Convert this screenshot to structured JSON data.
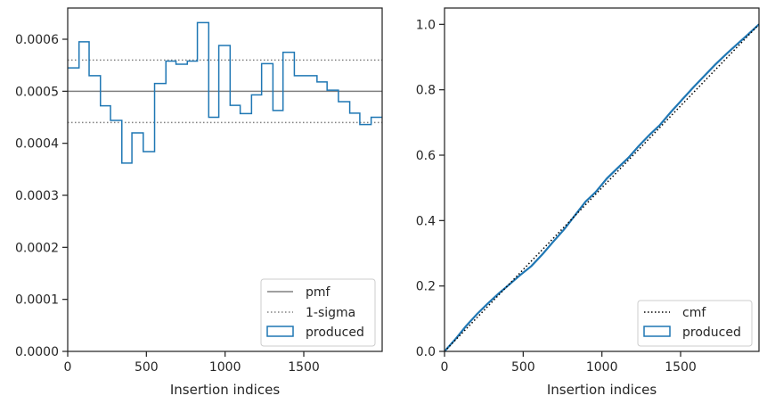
{
  "chart_data": [
    {
      "type": "line",
      "subtype": "step-histogram",
      "title": "",
      "xlabel": "Insertion indices",
      "ylabel": "",
      "xlim": [
        0,
        1998
      ],
      "ylim": [
        0,
        0.00066
      ],
      "xticks": [
        0,
        500,
        1000,
        1500
      ],
      "yticks": [
        0,
        0.0001,
        0.0002,
        0.0003,
        0.0004,
        0.0005,
        0.0006
      ],
      "xtick_labels": [
        "0",
        "500",
        "1000",
        "1500"
      ],
      "ytick_labels": [
        "0.0000",
        "0.0001",
        "0.0002",
        "0.0003",
        "0.0004",
        "0.0005",
        "0.0006"
      ],
      "grid": false,
      "legend_position": "lower-right",
      "bin_edges": [
        0,
        72,
        136,
        208,
        272,
        344,
        408,
        480,
        552,
        624,
        688,
        760,
        824,
        896,
        960,
        1032,
        1096,
        1168,
        1232,
        1304,
        1368,
        1440,
        1512,
        1584,
        1648,
        1720,
        1792,
        1856,
        1928,
        1998
      ],
      "series": [
        {
          "name": "pmf",
          "kind": "hline",
          "y": 0.0005,
          "color": "#808080",
          "style": "solid"
        },
        {
          "name": "1-sigma",
          "kind": "hlines",
          "y": [
            0.00044,
            0.00056
          ],
          "color": "#808080",
          "style": "dotted"
        },
        {
          "name": "produced",
          "kind": "step",
          "color": "#1f77b4",
          "values": [
            0.000545,
            0.000595,
            0.00053,
            0.000472,
            0.000444,
            0.000362,
            0.00042,
            0.000384,
            0.000515,
            0.000558,
            0.000552,
            0.000558,
            0.000632,
            0.00045,
            0.000588,
            0.000473,
            0.000457,
            0.000493,
            0.000553,
            0.000463,
            0.000575,
            0.00053,
            0.00053,
            0.000518,
            0.000502,
            0.00048,
            0.000458,
            0.000436,
            0.00045
          ]
        }
      ],
      "legend": [
        "pmf",
        "1-sigma",
        "produced"
      ]
    },
    {
      "type": "line",
      "title": "",
      "xlabel": "Insertion indices",
      "ylabel": "",
      "xlim": [
        0,
        1998
      ],
      "ylim": [
        0,
        1.05
      ],
      "xticks": [
        0,
        500,
        1000,
        1500
      ],
      "yticks": [
        0,
        0.2,
        0.4,
        0.6,
        0.8,
        1.0
      ],
      "xtick_labels": [
        "0",
        "500",
        "1000",
        "1500"
      ],
      "ytick_labels": [
        "0.0",
        "0.2",
        "0.4",
        "0.6",
        "0.8",
        "1.0"
      ],
      "grid": false,
      "legend_position": "lower-right",
      "series": [
        {
          "name": "cmf",
          "color": "#000000",
          "style": "dotted",
          "x": [
            0,
            1998
          ],
          "y": [
            0,
            1.0
          ]
        },
        {
          "name": "produced",
          "color": "#1f77b4",
          "style": "solid",
          "x": [
            0,
            72,
            136,
            208,
            272,
            344,
            408,
            480,
            552,
            624,
            688,
            760,
            824,
            896,
            960,
            1032,
            1096,
            1168,
            1232,
            1304,
            1368,
            1440,
            1512,
            1584,
            1648,
            1720,
            1792,
            1856,
            1928,
            1998
          ],
          "y": [
            0,
            0.039,
            0.077,
            0.115,
            0.145,
            0.177,
            0.203,
            0.233,
            0.261,
            0.298,
            0.334,
            0.373,
            0.413,
            0.458,
            0.487,
            0.529,
            0.559,
            0.592,
            0.627,
            0.663,
            0.692,
            0.733,
            0.771,
            0.809,
            0.841,
            0.877,
            0.91,
            0.938,
            0.969,
            1.0
          ]
        }
      ],
      "legend": [
        "cmf",
        "produced"
      ]
    }
  ]
}
